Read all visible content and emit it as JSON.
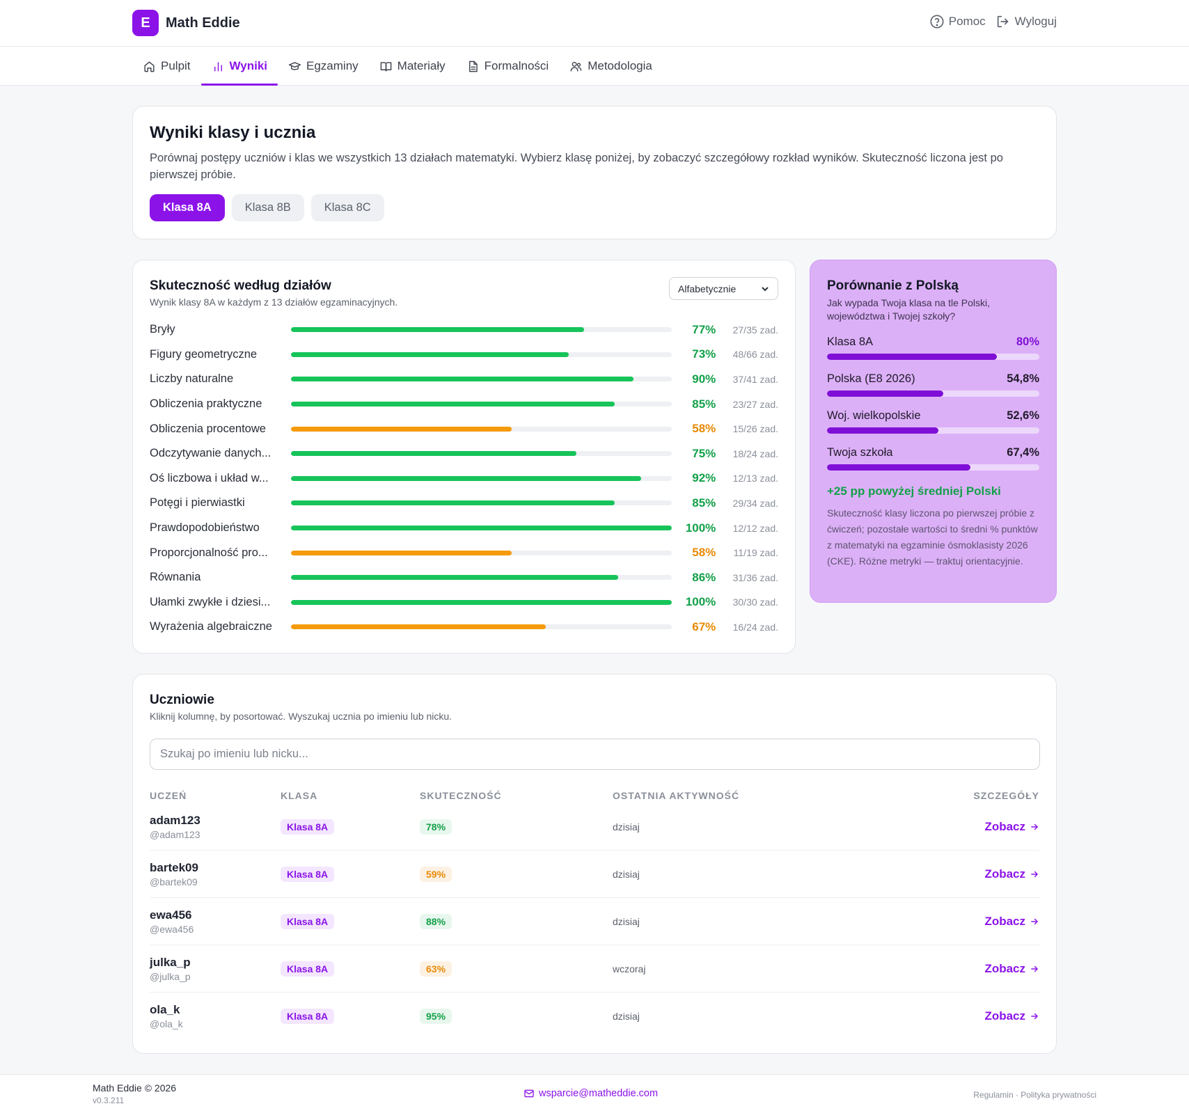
{
  "header": {
    "logo_letter": "E",
    "brand": "Math Eddie",
    "help_label": "Pomoc",
    "logout_label": "Wyloguj"
  },
  "nav": {
    "tabs": [
      {
        "label": "Pulpit",
        "icon": "home-icon"
      },
      {
        "label": "Wyniki",
        "icon": "bar-chart-icon",
        "active": true
      },
      {
        "label": "Egzaminy",
        "icon": "graduation-cap-icon"
      },
      {
        "label": "Materiały",
        "icon": "book-icon"
      },
      {
        "label": "Formalności",
        "icon": "document-icon"
      },
      {
        "label": "Metodologia",
        "icon": "users-icon"
      }
    ]
  },
  "intro": {
    "title": "Wyniki klasy i ucznia",
    "description": "Porównaj postępy uczniów i klas we wszystkich 13 działach matematyki. Wybierz klasę poniżej, by zobaczyć szczegółowy rozkład wyników. Skuteczność liczona jest po pierwszej próbie.",
    "classes": [
      {
        "label": "Klasa 8A",
        "active": true
      },
      {
        "label": "Klasa 8B",
        "active": false
      },
      {
        "label": "Klasa 8C",
        "active": false
      }
    ]
  },
  "effectiveness": {
    "title": "Skuteczność według działów",
    "subtitle": "Wynik klasy 8A w każdym z 13 działów egzaminacyjnych.",
    "sort_value": "Alfabetycznie",
    "rows": [
      {
        "name": "Bryły",
        "pct": 77,
        "pct_label": "77%",
        "count": "27/35 zad."
      },
      {
        "name": "Figury geometryczne",
        "pct": 73,
        "pct_label": "73%",
        "count": "48/66 zad."
      },
      {
        "name": "Liczby naturalne",
        "pct": 90,
        "pct_label": "90%",
        "count": "37/41 zad."
      },
      {
        "name": "Obliczenia praktyczne",
        "pct": 85,
        "pct_label": "85%",
        "count": "23/27 zad."
      },
      {
        "name": "Obliczenia procentowe",
        "pct": 58,
        "pct_label": "58%",
        "count": "15/26 zad."
      },
      {
        "name": "Odczytywanie danych...",
        "pct": 75,
        "pct_label": "75%",
        "count": "18/24 zad."
      },
      {
        "name": "Oś liczbowa i układ w...",
        "pct": 92,
        "pct_label": "92%",
        "count": "12/13 zad."
      },
      {
        "name": "Potęgi i pierwiastki",
        "pct": 85,
        "pct_label": "85%",
        "count": "29/34 zad."
      },
      {
        "name": "Prawdopodobieństwo",
        "pct": 100,
        "pct_label": "100%",
        "count": "12/12 zad."
      },
      {
        "name": "Proporcjonalność pro...",
        "pct": 58,
        "pct_label": "58%",
        "count": "11/19 zad."
      },
      {
        "name": "Równania",
        "pct": 86,
        "pct_label": "86%",
        "count": "31/36 zad."
      },
      {
        "name": "Ułamki zwykłe i dziesi...",
        "pct": 100,
        "pct_label": "100%",
        "count": "30/30 zad."
      },
      {
        "name": "Wyrażenia algebraiczne",
        "pct": 67,
        "pct_label": "67%",
        "count": "16/24 zad."
      }
    ],
    "colors": {
      "good": "#16c45a",
      "good_text": "#13a049",
      "warn": "#f59b0b",
      "warn_text": "#e88a06"
    }
  },
  "compare": {
    "title": "Porównanie z Polską",
    "subtitle": "Jak wypada Twoja klasa na tle Polski, województwa i Twojej szkoły?",
    "items": [
      {
        "label": "Klasa 8A",
        "value": "80%",
        "fraction": 0.8,
        "highlight": true
      },
      {
        "label": "Polska (E8 2026)",
        "value": "54,8%",
        "fraction": 0.548
      },
      {
        "label": "Woj. wielkopolskie",
        "value": "52,6%",
        "fraction": 0.526
      },
      {
        "label": "Twoja szkoła",
        "value": "67,4%",
        "fraction": 0.674
      }
    ],
    "delta": "+25 pp powyżej średniej Polski",
    "note": "Skuteczność klasy liczona po pierwszej próbie z ćwiczeń; pozostałe wartości to średni % punktów z matematyki na egzaminie ósmoklasisty 2026 (CKE). Różne metryki — traktuj orientacyjnie."
  },
  "students": {
    "title": "Uczniowie",
    "subtitle": "Kliknij kolumnę, by posortować. Wyszukaj ucznia po imieniu lub nicku.",
    "search_placeholder": "Szukaj po imieniu lub nicku...",
    "columns": [
      "UCZEŃ",
      "KLASA",
      "SKUTECZNOŚĆ",
      "OSTATNIA AKTYWNOŚĆ",
      "SZCZEGÓŁY"
    ],
    "rows": [
      {
        "name": "adam123",
        "nick": "@adam123",
        "class": "Klasa 8A",
        "score": "78%",
        "status": "green",
        "activity": "dzisiaj",
        "action": "Zobacz"
      },
      {
        "name": "bartek09",
        "nick": "@bartek09",
        "class": "Klasa 8A",
        "score": "59%",
        "status": "orange",
        "activity": "dzisiaj",
        "action": "Zobacz"
      },
      {
        "name": "ewa456",
        "nick": "@ewa456",
        "class": "Klasa 8A",
        "score": "88%",
        "status": "green",
        "activity": "dzisiaj",
        "action": "Zobacz"
      },
      {
        "name": "julka_p",
        "nick": "@julka_p",
        "class": "Klasa 8A",
        "score": "63%",
        "status": "orange",
        "activity": "wczoraj",
        "action": "Zobacz"
      },
      {
        "name": "ola_k",
        "nick": "@ola_k",
        "class": "Klasa 8A",
        "score": "95%",
        "status": "green",
        "activity": "dzisiaj",
        "action": "Zobacz"
      }
    ]
  },
  "footer": {
    "brand": "Math Eddie © 2026",
    "version": "v0.3.211",
    "email": "wsparcie@matheddie.com",
    "links": "Regulamin · Polityka prywatności"
  },
  "theme": {
    "accent": "#8b13e8"
  }
}
